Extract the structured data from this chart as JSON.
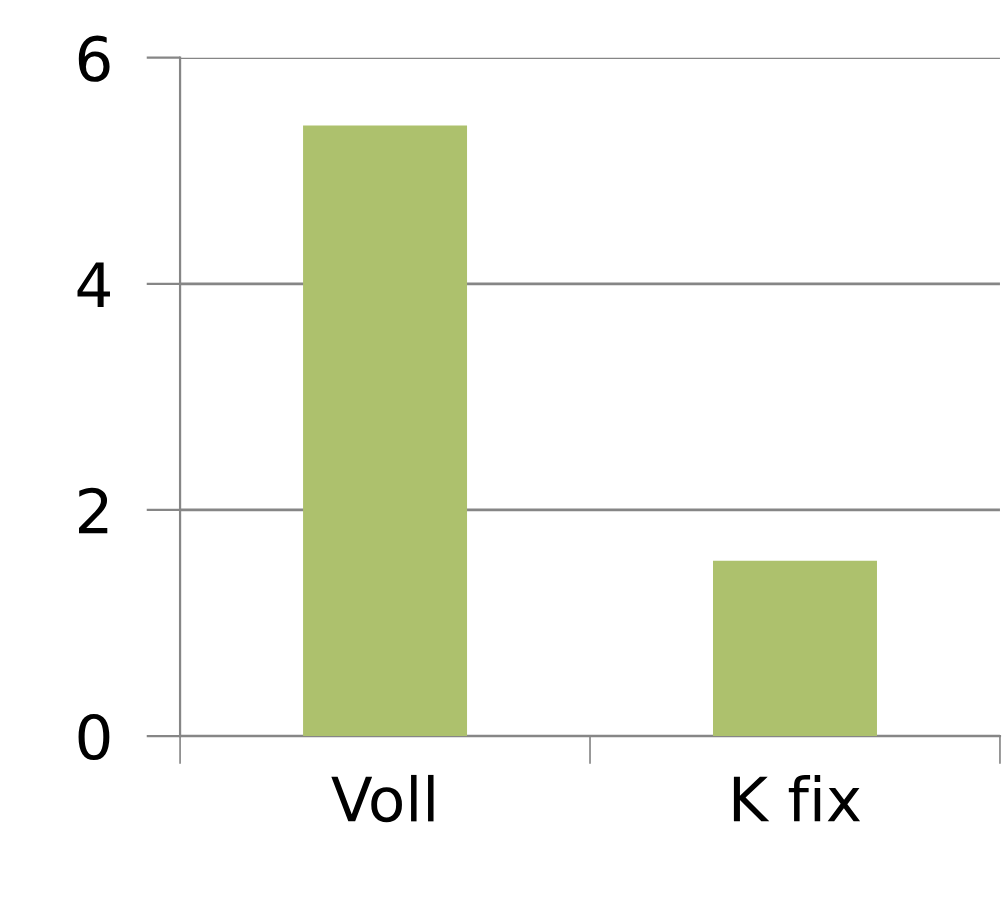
{
  "chart_data": {
    "type": "bar",
    "categories": [
      "Voll",
      "K fix"
    ],
    "values": [
      5.4,
      1.55
    ],
    "color": "#adc16d",
    "ylim": [
      0,
      6
    ],
    "yticks": [
      0,
      2,
      4,
      6
    ],
    "grid": "y",
    "legend": false
  }
}
